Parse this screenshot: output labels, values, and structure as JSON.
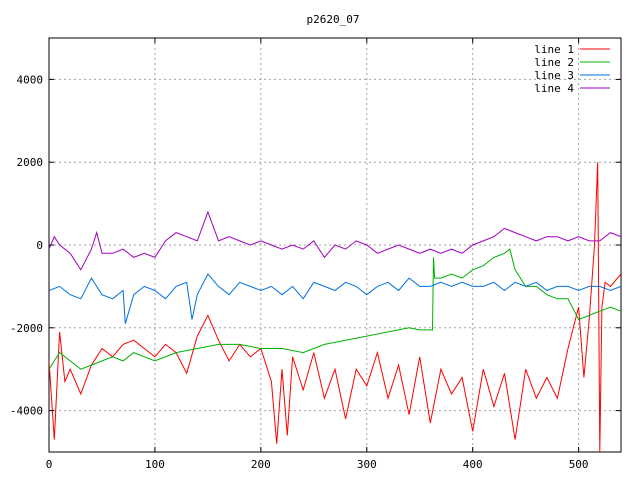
{
  "chart_data": {
    "type": "line",
    "title": "p2620_07",
    "xlabel": "",
    "ylabel": "",
    "xlim": [
      0,
      540
    ],
    "ylim": [
      -5000,
      5000
    ],
    "xticks": [
      0,
      100,
      200,
      300,
      400,
      500
    ],
    "yticks": [
      -4000,
      -2000,
      0,
      2000,
      4000
    ],
    "grid": true,
    "legend_position": "top-right",
    "series": [
      {
        "name": "line 1",
        "color": "#ff0000",
        "x": [
          0,
          5,
          10,
          15,
          20,
          30,
          40,
          50,
          60,
          70,
          80,
          90,
          100,
          110,
          120,
          130,
          140,
          150,
          160,
          170,
          180,
          190,
          200,
          210,
          215,
          220,
          225,
          230,
          240,
          250,
          260,
          270,
          280,
          290,
          300,
          310,
          320,
          330,
          340,
          350,
          360,
          370,
          380,
          390,
          400,
          410,
          420,
          430,
          440,
          450,
          460,
          470,
          480,
          490,
          500,
          505,
          510,
          515,
          518,
          520,
          522,
          525,
          530,
          540
        ],
        "y": [
          -2800,
          -4700,
          -2100,
          -3300,
          -3000,
          -3600,
          -2900,
          -2500,
          -2700,
          -2400,
          -2300,
          -2500,
          -2700,
          -2400,
          -2600,
          -3100,
          -2200,
          -1700,
          -2300,
          -2800,
          -2400,
          -2700,
          -2500,
          -3300,
          -4800,
          -3000,
          -4600,
          -2700,
          -3500,
          -2600,
          -3700,
          -3000,
          -4200,
          -3000,
          -3400,
          -2600,
          -3700,
          -2900,
          -4100,
          -2700,
          -4300,
          -3000,
          -3600,
          -3200,
          -4500,
          -3000,
          -3900,
          -3100,
          -4700,
          -3000,
          -3700,
          -3200,
          -3700,
          -2500,
          -1500,
          -3200,
          -1800,
          0,
          2000,
          -5000,
          -1500,
          -900,
          -1000,
          -700
        ]
      },
      {
        "name": "line 2",
        "color": "#00b000",
        "x": [
          0,
          10,
          20,
          30,
          40,
          50,
          60,
          70,
          80,
          90,
          100,
          120,
          140,
          160,
          180,
          200,
          220,
          240,
          260,
          280,
          300,
          320,
          340,
          350,
          355,
          360,
          362,
          363,
          364,
          370,
          380,
          390,
          400,
          410,
          420,
          430,
          435,
          440,
          450,
          460,
          470,
          480,
          490,
          500,
          510,
          520,
          530,
          540
        ],
        "y": [
          -3000,
          -2600,
          -2800,
          -3000,
          -2900,
          -2800,
          -2700,
          -2800,
          -2600,
          -2700,
          -2800,
          -2600,
          -2500,
          -2400,
          -2400,
          -2500,
          -2500,
          -2600,
          -2400,
          -2300,
          -2200,
          -2100,
          -2000,
          -2050,
          -2050,
          -2050,
          -2050,
          -300,
          -800,
          -800,
          -700,
          -800,
          -600,
          -500,
          -300,
          -200,
          -100,
          -600,
          -1000,
          -1000,
          -1200,
          -1300,
          -1300,
          -1800,
          -1700,
          -1600,
          -1500,
          -1600
        ]
      },
      {
        "name": "line 3",
        "color": "#0070e0",
        "x": [
          0,
          10,
          20,
          30,
          40,
          50,
          60,
          70,
          72,
          80,
          90,
          100,
          110,
          120,
          130,
          135,
          140,
          150,
          160,
          170,
          180,
          190,
          200,
          210,
          220,
          230,
          240,
          250,
          260,
          270,
          280,
          290,
          300,
          310,
          320,
          330,
          340,
          350,
          360,
          370,
          380,
          390,
          400,
          410,
          420,
          430,
          440,
          450,
          460,
          470,
          480,
          490,
          500,
          510,
          520,
          530,
          540
        ],
        "y": [
          -1100,
          -1000,
          -1200,
          -1300,
          -800,
          -1200,
          -1300,
          -1100,
          -1900,
          -1200,
          -1000,
          -1100,
          -1300,
          -1000,
          -900,
          -1800,
          -1200,
          -700,
          -1000,
          -1200,
          -900,
          -1000,
          -1100,
          -1000,
          -1200,
          -1000,
          -1300,
          -900,
          -1000,
          -1100,
          -900,
          -1000,
          -1200,
          -1000,
          -900,
          -1100,
          -800,
          -1000,
          -1000,
          -900,
          -1000,
          -900,
          -1000,
          -1000,
          -900,
          -1100,
          -900,
          -1000,
          -900,
          -1100,
          -1000,
          -1000,
          -1100,
          -1000,
          -1000,
          -1100,
          -1000
        ]
      },
      {
        "name": "line 4",
        "color": "#a000c0",
        "x": [
          0,
          5,
          10,
          20,
          30,
          40,
          45,
          50,
          60,
          70,
          80,
          90,
          100,
          110,
          120,
          130,
          140,
          150,
          160,
          170,
          180,
          190,
          200,
          210,
          220,
          230,
          240,
          250,
          260,
          270,
          280,
          290,
          300,
          310,
          320,
          330,
          340,
          350,
          360,
          370,
          380,
          390,
          400,
          410,
          420,
          430,
          440,
          450,
          460,
          470,
          480,
          490,
          500,
          510,
          520,
          530,
          540
        ],
        "y": [
          -100,
          200,
          0,
          -200,
          -600,
          -100,
          300,
          -200,
          -200,
          -100,
          -300,
          -200,
          -300,
          100,
          300,
          200,
          100,
          800,
          100,
          200,
          100,
          0,
          100,
          0,
          -100,
          0,
          -100,
          100,
          -300,
          0,
          -100,
          100,
          0,
          -200,
          -100,
          0,
          -100,
          -200,
          -100,
          -200,
          -100,
          -200,
          0,
          100,
          200,
          400,
          300,
          200,
          100,
          200,
          200,
          100,
          200,
          100,
          100,
          300,
          200
        ]
      }
    ]
  }
}
